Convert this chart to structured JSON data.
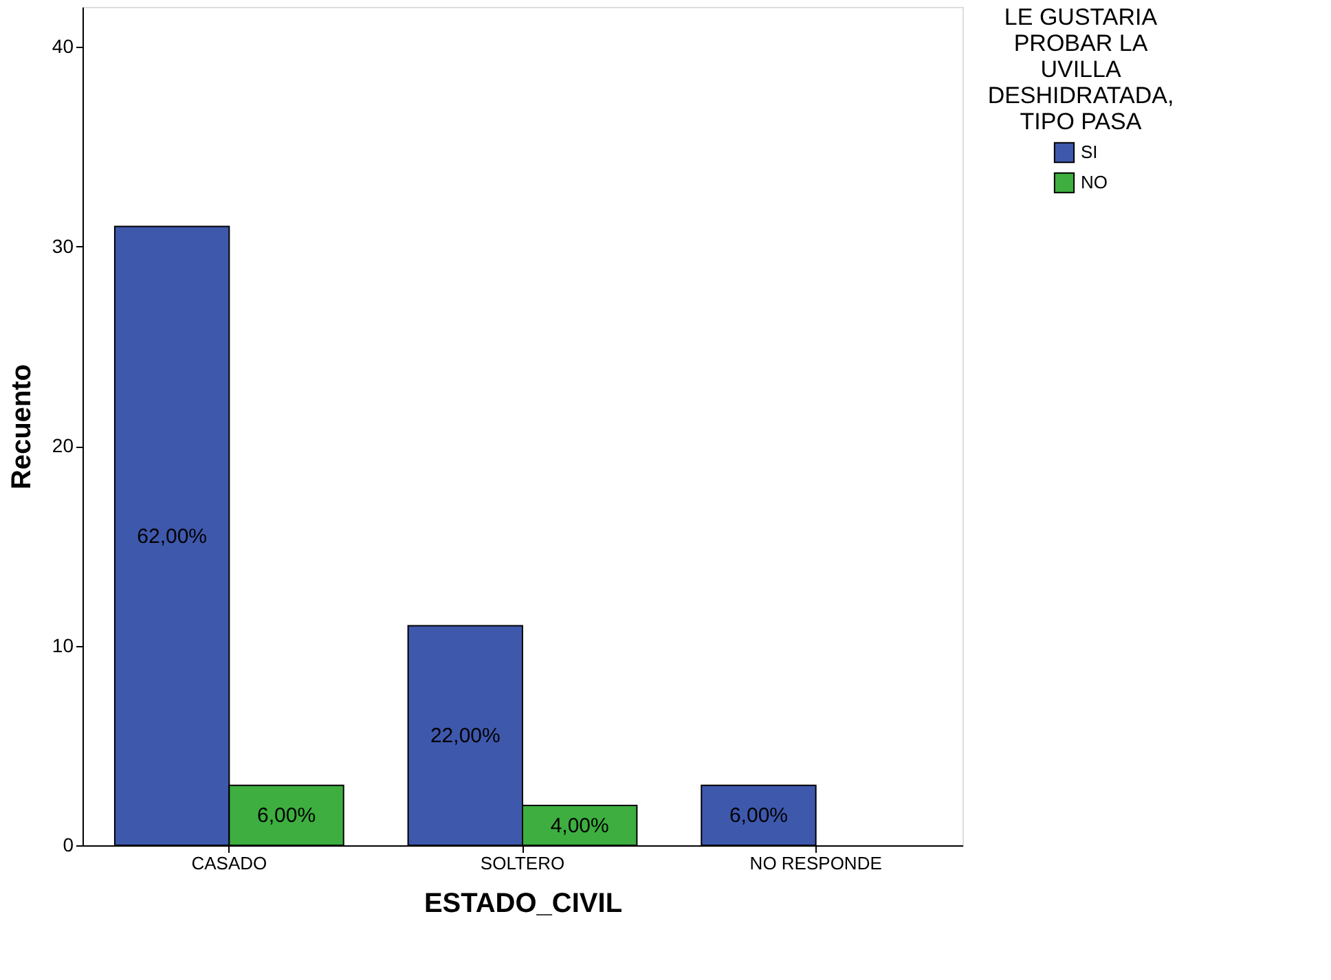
{
  "chart_data": {
    "type": "bar",
    "xlabel": "ESTADO_CIVIL",
    "ylabel": "Recuento",
    "legend_title": "LE GUSTARIA PROBAR LA UVILLA DESHIDRATADA, TIPO PASA",
    "categories": [
      "CASADO",
      "SOLTERO",
      "NO RESPONDE"
    ],
    "series": [
      {
        "name": "SI",
        "color": "#3e58ac",
        "values": [
          31,
          11,
          3
        ]
      },
      {
        "name": "NO",
        "color": "#3dae3f",
        "values": [
          3,
          2,
          null
        ]
      }
    ],
    "annotations": [
      {
        "text": "62,00%",
        "x": "CASADO",
        "y": 15.5
      },
      {
        "text": "6,00%",
        "x": "CASADO",
        "y": 1.5
      },
      {
        "text": "22,00%",
        "x": "SOLTERO",
        "y": 5.5
      },
      {
        "text": "4,00%",
        "x": "SOLTERO",
        "y": 1
      },
      {
        "text": "6,00%",
        "x": "NO RESPONDE",
        "y": 1.5
      }
    ],
    "ylim": [
      0,
      42
    ],
    "yticks": [
      0,
      10,
      20,
      30,
      40
    ],
    "grid": false,
    "legend": "top right"
  }
}
